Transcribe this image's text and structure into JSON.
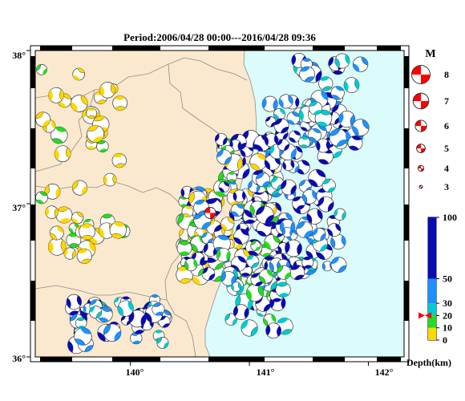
{
  "title": "Period:2006/04/28 00:00---2016/04/28 09:36",
  "map": {
    "lat_labels": [
      "38°",
      "37°",
      "36°"
    ],
    "lon_labels": [
      "140°",
      "141°",
      "142°"
    ],
    "lon_range": [
      139.2,
      142.3
    ],
    "lat_range": [
      36.0,
      38.0
    ],
    "colors": {
      "land": "#fbe9cf",
      "sea": "#dcfcfc",
      "border": "#8c8c8c",
      "frame": "#000000"
    }
  },
  "magnitude_legend": {
    "header": "M",
    "items": [
      {
        "label": "8",
        "mag": 8
      },
      {
        "label": "7",
        "mag": 7
      },
      {
        "label": "6",
        "mag": 6
      },
      {
        "label": "5",
        "mag": 5
      },
      {
        "label": "4",
        "mag": 4
      },
      {
        "label": "3",
        "mag": 3
      }
    ],
    "color": "#ff0000"
  },
  "depth_legend": {
    "tick_labels": [
      "100",
      "50",
      "30",
      "20",
      "10",
      "0"
    ],
    "ticks": [
      100,
      50,
      30,
      20,
      10,
      0
    ],
    "unit_label": "Depth(km)",
    "bands": [
      {
        "from": 0,
        "to": 10,
        "color": "#ffd700"
      },
      {
        "from": 10,
        "to": 20,
        "color": "#22dd22"
      },
      {
        "from": 20,
        "to": 30,
        "color": "#00cccc"
      },
      {
        "from": 30,
        "to": 50,
        "color": "#1e90ff"
      },
      {
        "from": 50,
        "to": 100,
        "color": "#0a0ab4"
      }
    ],
    "marker_depth": 20,
    "marker_color": "#ff0000"
  },
  "mainshock": {
    "lon": 140.67,
    "lat": 36.94,
    "color": "#ff0000"
  }
}
